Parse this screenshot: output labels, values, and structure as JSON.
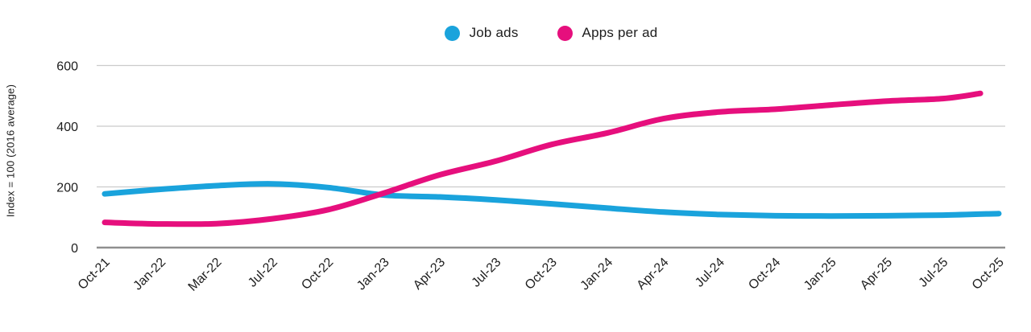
{
  "chart_data": {
    "type": "line",
    "title": "",
    "ylabel": "Index = 100 (2016 average)",
    "xlabel": "",
    "ylim": [
      0,
      600
    ],
    "yticks": [
      0,
      200,
      400,
      600
    ],
    "grid": "horizontal",
    "legend_position": "top-center",
    "x_labels": [
      "Oct-21",
      "Jan-22",
      "Mar-22",
      "Jul-22",
      "Oct-22",
      "Jan-23",
      "Apr-23",
      "Jul-23",
      "Oct-23",
      "Jan-24",
      "Apr-24",
      "Jul-24",
      "Oct-24",
      "Jan-25",
      "Apr-25",
      "Jul-25",
      "Oct-25"
    ],
    "series": [
      {
        "name": "Job ads",
        "color": "#1aa3dc",
        "x": [
          0,
          1,
          2,
          3,
          4,
          5,
          6,
          7,
          8,
          9,
          10,
          11,
          12,
          13,
          14,
          15,
          16
        ],
        "values": [
          177,
          192,
          204,
          210,
          198,
          173,
          167,
          157,
          144,
          130,
          117,
          109,
          105,
          104,
          105,
          107,
          112
        ]
      },
      {
        "name": "Apps per ad",
        "color": "#e60f7d",
        "x": [
          0,
          1,
          2,
          3,
          4,
          5,
          6,
          7,
          8,
          9,
          10,
          11,
          12,
          13,
          14,
          15,
          15.67
        ],
        "values": [
          83,
          78,
          79,
          95,
          125,
          180,
          240,
          285,
          340,
          378,
          425,
          447,
          456,
          470,
          483,
          491,
          508
        ]
      }
    ]
  }
}
